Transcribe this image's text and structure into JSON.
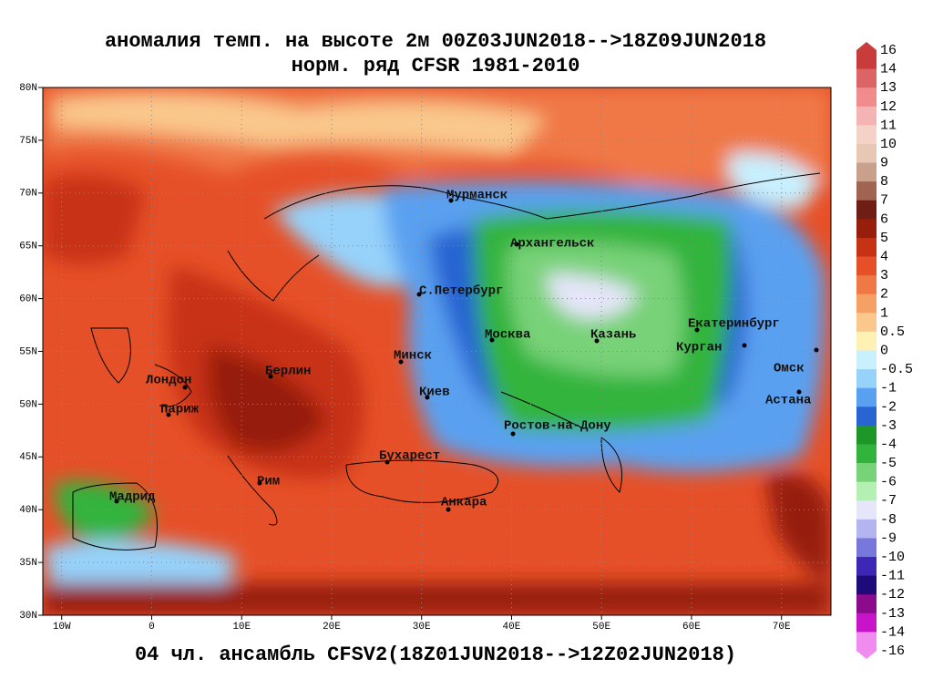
{
  "header": {
    "title": [
      "аномалия темп. на высоте 2м 00Z03JUN2018-->18Z09JUN2018",
      "норм. ряд CFSR 1981-2010"
    ]
  },
  "footer": "04 чл. ансамбль CFSV2(18Z01JUN2018-->12Z02JUN2018)",
  "map": {
    "xlim": [
      -12.1,
      75.5
    ],
    "ylim": [
      30,
      80
    ],
    "lon_ticks": [
      {
        "value": -10,
        "label": "10W"
      },
      0,
      {
        "value": 10,
        "label": "10E"
      },
      {
        "value": 20,
        "label": "20E"
      },
      {
        "value": 30,
        "label": "30E"
      },
      {
        "value": 40,
        "label": "40E"
      },
      {
        "value": 50,
        "label": "50E"
      },
      {
        "value": 60,
        "label": "60E"
      },
      {
        "value": 70,
        "label": "70E"
      }
    ],
    "lat_ticks": [
      {
        "value": 30,
        "label": "30N"
      },
      {
        "value": 35,
        "label": "35N"
      },
      {
        "value": 40,
        "label": "40N"
      },
      {
        "value": 45,
        "label": "45N"
      },
      {
        "value": 50,
        "label": "50N"
      },
      {
        "value": 55,
        "label": "55N"
      },
      {
        "value": 60,
        "label": "60N"
      },
      {
        "value": 65,
        "label": "65N"
      },
      {
        "value": 70,
        "label": "70N"
      },
      {
        "value": 75,
        "label": "75N"
      },
      {
        "value": 80,
        "label": "80N"
      }
    ],
    "cities": [
      "Мурманск",
      "Архангельск",
      "С.Петербург",
      "Москва",
      "Казань",
      "Екатеринбург",
      "Курган",
      "Омск",
      "Астана",
      "Минск",
      "Киев",
      "Ростов-на-Дону",
      "Бухарест",
      "Анкара",
      "Берлин",
      "Лондон",
      "Париж",
      "Рим",
      "Мадрид"
    ]
  },
  "colorbar": {
    "labels": [
      16,
      14,
      13,
      12,
      11,
      10,
      9,
      8,
      7,
      6,
      5,
      4,
      3,
      2,
      1,
      0.5,
      0,
      -0.5,
      -1,
      -2,
      -3,
      -4,
      -5,
      -6,
      -7,
      -8,
      -9,
      -10,
      -11,
      -12,
      -13,
      -14,
      -16
    ],
    "colors": [
      "#c83c3c",
      "#dc6464",
      "#f08c8c",
      "#f5b4b4",
      "#f5d2c8",
      "#e6c8b4",
      "#c8a08c",
      "#a06450",
      "#6e1e14",
      "#961e0a",
      "#c83214",
      "#e65028",
      "#f07846",
      "#f5a064",
      "#fac88c",
      "#fff0b4",
      "#c8f0ff",
      "#96d2fa",
      "#5aa0f0",
      "#2864d2",
      "#1e9628",
      "#32b43c",
      "#78d278",
      "#b4f0b4",
      "#e6e6fa",
      "#b4b4f0",
      "#7878dc",
      "#3c28b4",
      "#1e0a78",
      "#8c0a8c",
      "#c814c8",
      "#f08cf0"
    ]
  }
}
